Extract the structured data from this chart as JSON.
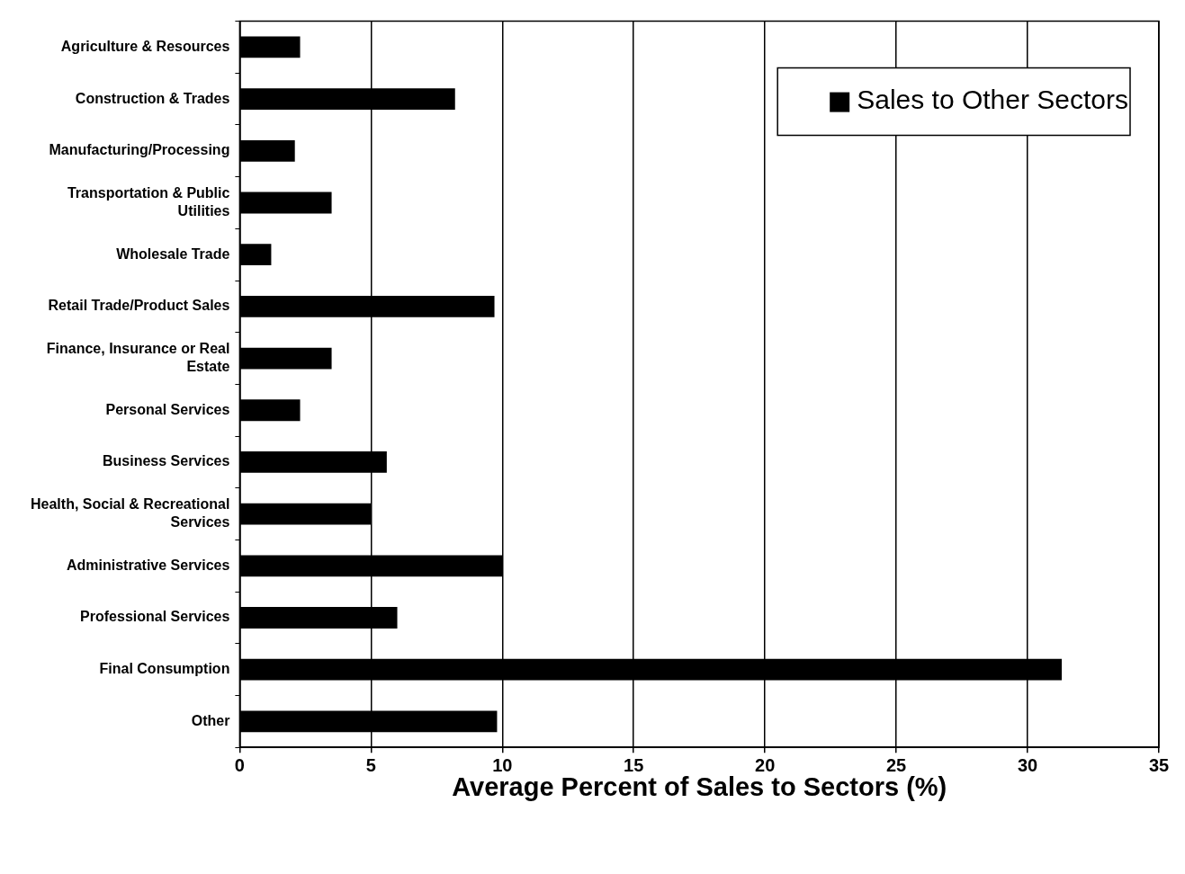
{
  "chart_data": {
    "type": "bar",
    "orientation": "horizontal",
    "xlabel": "Average Percent of Sales to Sectors (%)",
    "categories": [
      "Agriculture & Resources",
      "Construction & Trades",
      "Manufacturing/Processing",
      "Transportation & Public Utilities",
      "Wholesale Trade",
      "Retail Trade/Product Sales",
      "Finance, Insurance or Real Estate",
      "Personal Services",
      "Business Services",
      "Health, Social & Recreational Services",
      "Administrative Services",
      "Professional Services",
      "Final Consumption",
      "Other"
    ],
    "series": [
      {
        "name": "Sales to Other Sectors",
        "color": "#000000",
        "values": [
          2.3,
          8.2,
          2.1,
          3.5,
          1.2,
          9.7,
          3.5,
          2.3,
          5.6,
          5.0,
          10.0,
          6.0,
          31.3,
          9.8
        ]
      }
    ],
    "xlim": [
      0,
      35
    ],
    "xticks": [
      0,
      5,
      10,
      15,
      20,
      25,
      30,
      35
    ],
    "grid": "x",
    "legend": "top right"
  }
}
